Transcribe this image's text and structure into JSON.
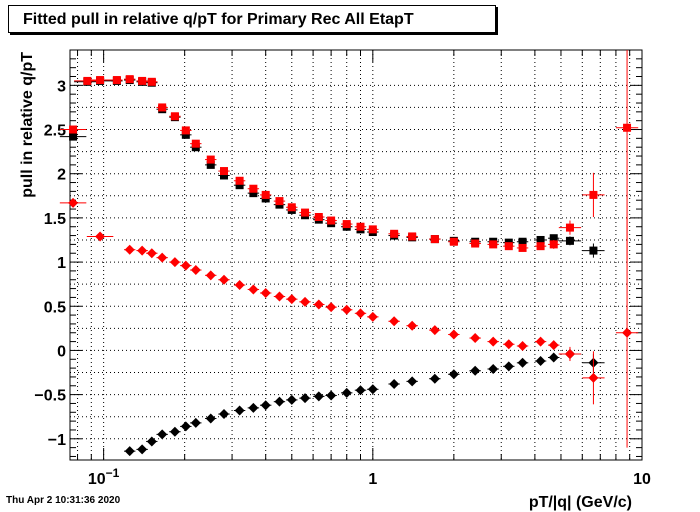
{
  "chart_data": {
    "type": "scatter",
    "title": "Fitted pull in relative q/pT for Primary Rec All EtapT",
    "xlabel": "pT/|q| (GeV/c)",
    "ylabel": "pull in relative q/pT",
    "x_scale": "log",
    "xlim": [
      0.075,
      10
    ],
    "ylim": [
      -1.24,
      3.4
    ],
    "grid": true,
    "x_tick_labels": [
      {
        "v": 0.1,
        "t": "10",
        "sup": "−1"
      },
      {
        "v": 1,
        "t": "1",
        "sup": ""
      },
      {
        "v": 10,
        "t": "10",
        "sup": ""
      }
    ],
    "y_ticks": [
      -1,
      -0.5,
      0,
      0.5,
      1,
      1.5,
      2,
      2.5,
      3
    ],
    "y_tick_labels": [
      "−1",
      "−0.5",
      "0",
      "0.5",
      "1",
      "1.5",
      "2",
      "2.5",
      "3"
    ],
    "series": [
      {
        "marker": "square",
        "color": "#000000",
        "points": [
          [
            0.077,
            2.42
          ],
          [
            0.087,
            3.04
          ],
          [
            0.097,
            3.05
          ],
          [
            0.112,
            3.05
          ],
          [
            0.125,
            3.06
          ],
          [
            0.139,
            3.04
          ],
          [
            0.151,
            3.03
          ],
          [
            0.165,
            2.73
          ],
          [
            0.184,
            2.64
          ],
          [
            0.202,
            2.44
          ],
          [
            0.22,
            2.3
          ],
          [
            0.25,
            2.1
          ],
          [
            0.28,
            1.98
          ],
          [
            0.32,
            1.87
          ],
          [
            0.36,
            1.78
          ],
          [
            0.4,
            1.72
          ],
          [
            0.45,
            1.65
          ],
          [
            0.5,
            1.59
          ],
          [
            0.56,
            1.53
          ],
          [
            0.63,
            1.48
          ],
          [
            0.7,
            1.44
          ],
          [
            0.8,
            1.4
          ],
          [
            0.9,
            1.37
          ],
          [
            1.0,
            1.34
          ],
          [
            1.2,
            1.3
          ],
          [
            1.4,
            1.28
          ],
          [
            1.7,
            1.26
          ],
          [
            2.0,
            1.24
          ],
          [
            2.4,
            1.23
          ],
          [
            2.8,
            1.23
          ],
          [
            3.2,
            1.22
          ],
          [
            3.6,
            1.23
          ],
          [
            4.2,
            1.25
          ],
          [
            4.7,
            1.27
          ],
          [
            5.4,
            1.24
          ],
          [
            6.6,
            1.13
          ]
        ],
        "yerr": [
          0.01,
          0.01,
          0.01,
          0.01,
          0.01,
          0.01,
          0.01,
          0.01,
          0.01,
          0.01,
          0.01,
          0.01,
          0.01,
          0.01,
          0.01,
          0.01,
          0.01,
          0.01,
          0.01,
          0.01,
          0.01,
          0.01,
          0.01,
          0.01,
          0.01,
          0.01,
          0.01,
          0.01,
          0.01,
          0.01,
          0.01,
          0.02,
          0.03,
          0.04,
          0.05,
          0.08
        ]
      },
      {
        "marker": "square",
        "color": "#ff0000",
        "points": [
          [
            0.077,
            2.5
          ],
          [
            0.087,
            3.05
          ],
          [
            0.097,
            3.06
          ],
          [
            0.112,
            3.06
          ],
          [
            0.125,
            3.07
          ],
          [
            0.139,
            3.05
          ],
          [
            0.151,
            3.04
          ],
          [
            0.165,
            2.75
          ],
          [
            0.184,
            2.65
          ],
          [
            0.202,
            2.49
          ],
          [
            0.22,
            2.34
          ],
          [
            0.25,
            2.16
          ],
          [
            0.28,
            2.03
          ],
          [
            0.32,
            1.92
          ],
          [
            0.36,
            1.83
          ],
          [
            0.4,
            1.76
          ],
          [
            0.45,
            1.69
          ],
          [
            0.5,
            1.62
          ],
          [
            0.56,
            1.56
          ],
          [
            0.63,
            1.51
          ],
          [
            0.7,
            1.47
          ],
          [
            0.8,
            1.43
          ],
          [
            0.9,
            1.4
          ],
          [
            1.0,
            1.37
          ],
          [
            1.2,
            1.32
          ],
          [
            1.4,
            1.29
          ],
          [
            1.7,
            1.26
          ],
          [
            2.0,
            1.23
          ],
          [
            2.4,
            1.21
          ],
          [
            2.8,
            1.2
          ],
          [
            3.2,
            1.18
          ],
          [
            3.6,
            1.16
          ],
          [
            4.2,
            1.18
          ],
          [
            4.7,
            1.2
          ],
          [
            5.4,
            1.39
          ],
          [
            6.6,
            1.76
          ],
          [
            8.8,
            2.52
          ]
        ],
        "yerr": [
          0.02,
          0.01,
          0.01,
          0.01,
          0.01,
          0.01,
          0.01,
          0.01,
          0.01,
          0.01,
          0.01,
          0.01,
          0.01,
          0.01,
          0.01,
          0.01,
          0.01,
          0.01,
          0.01,
          0.01,
          0.01,
          0.01,
          0.01,
          0.01,
          0.01,
          0.01,
          0.01,
          0.01,
          0.01,
          0.01,
          0.01,
          0.02,
          0.03,
          0.05,
          0.08,
          0.25,
          1.5
        ]
      },
      {
        "marker": "diamond",
        "color": "#000000",
        "points": [
          [
            0.125,
            -1.14
          ],
          [
            0.139,
            -1.12
          ],
          [
            0.151,
            -1.03
          ],
          [
            0.165,
            -0.95
          ],
          [
            0.184,
            -0.92
          ],
          [
            0.202,
            -0.86
          ],
          [
            0.22,
            -0.82
          ],
          [
            0.25,
            -0.77
          ],
          [
            0.28,
            -0.72
          ],
          [
            0.32,
            -0.68
          ],
          [
            0.36,
            -0.65
          ],
          [
            0.4,
            -0.62
          ],
          [
            0.45,
            -0.58
          ],
          [
            0.5,
            -0.56
          ],
          [
            0.56,
            -0.54
          ],
          [
            0.63,
            -0.52
          ],
          [
            0.7,
            -0.51
          ],
          [
            0.8,
            -0.48
          ],
          [
            0.9,
            -0.45
          ],
          [
            1.0,
            -0.44
          ],
          [
            1.2,
            -0.38
          ],
          [
            1.4,
            -0.35
          ],
          [
            1.7,
            -0.32
          ],
          [
            2.0,
            -0.27
          ],
          [
            2.4,
            -0.23
          ],
          [
            2.8,
            -0.21
          ],
          [
            3.2,
            -0.18
          ],
          [
            3.6,
            -0.14
          ],
          [
            4.2,
            -0.12
          ],
          [
            4.7,
            -0.08
          ],
          [
            5.4,
            -0.04
          ],
          [
            6.6,
            -0.14
          ]
        ],
        "yerr": [
          0.01,
          0.01,
          0.01,
          0.01,
          0.01,
          0.01,
          0.01,
          0.01,
          0.01,
          0.01,
          0.01,
          0.01,
          0.01,
          0.01,
          0.01,
          0.01,
          0.01,
          0.01,
          0.01,
          0.01,
          0.01,
          0.01,
          0.01,
          0.01,
          0.01,
          0.01,
          0.01,
          0.02,
          0.03,
          0.04,
          0.06,
          0.1
        ]
      },
      {
        "marker": "diamond",
        "color": "#ff0000",
        "points": [
          [
            0.077,
            1.67
          ],
          [
            0.097,
            1.29
          ],
          [
            0.125,
            1.14
          ],
          [
            0.139,
            1.13
          ],
          [
            0.151,
            1.1
          ],
          [
            0.165,
            1.05
          ],
          [
            0.184,
            1.0
          ],
          [
            0.202,
            0.96
          ],
          [
            0.22,
            0.91
          ],
          [
            0.25,
            0.85
          ],
          [
            0.28,
            0.8
          ],
          [
            0.32,
            0.74
          ],
          [
            0.36,
            0.69
          ],
          [
            0.4,
            0.65
          ],
          [
            0.45,
            0.61
          ],
          [
            0.5,
            0.58
          ],
          [
            0.56,
            0.55
          ],
          [
            0.63,
            0.52
          ],
          [
            0.7,
            0.49
          ],
          [
            0.8,
            0.46
          ],
          [
            0.9,
            0.42
          ],
          [
            1.0,
            0.38
          ],
          [
            1.2,
            0.33
          ],
          [
            1.4,
            0.28
          ],
          [
            1.7,
            0.23
          ],
          [
            2.0,
            0.18
          ],
          [
            2.4,
            0.14
          ],
          [
            2.8,
            0.1
          ],
          [
            3.2,
            0.07
          ],
          [
            3.6,
            0.05
          ],
          [
            4.2,
            0.1
          ],
          [
            4.7,
            0.06
          ],
          [
            5.4,
            -0.04
          ],
          [
            6.6,
            -0.31
          ],
          [
            8.8,
            0.2
          ]
        ],
        "yerr": [
          0.04,
          0.02,
          0.01,
          0.01,
          0.01,
          0.01,
          0.01,
          0.01,
          0.01,
          0.01,
          0.01,
          0.01,
          0.01,
          0.01,
          0.01,
          0.01,
          0.01,
          0.01,
          0.01,
          0.01,
          0.01,
          0.01,
          0.01,
          0.01,
          0.01,
          0.01,
          0.01,
          0.01,
          0.01,
          0.02,
          0.03,
          0.05,
          0.08,
          0.3,
          1.3
        ]
      }
    ]
  },
  "timestamp": "Thu Apr  2 10:31:36 2020"
}
